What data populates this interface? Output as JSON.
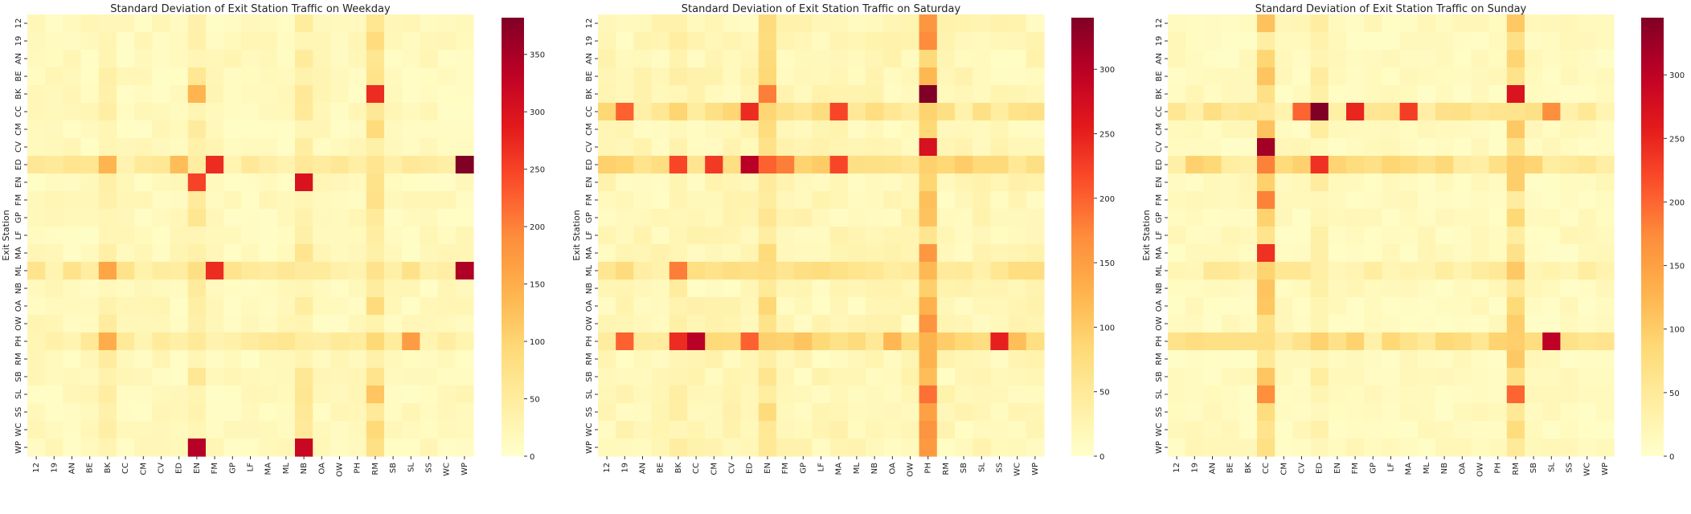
{
  "figure": {
    "y_label": "Exit Station"
  },
  "axis_ticks": {
    "y": [
      "12",
      "19",
      "AN",
      "BE",
      "BK",
      "CC",
      "CM",
      "CV",
      "ED",
      "EN",
      "FM",
      "GP",
      "LF",
      "MA",
      "ML",
      "NB",
      "OA",
      "OW",
      "PH",
      "RM",
      "SB",
      "SL",
      "SS",
      "WC",
      "WP"
    ],
    "x": [
      "12",
      "19",
      "AN",
      "BE",
      "BK",
      "CC",
      "CM",
      "CV",
      "ED",
      "EN",
      "FM",
      "GP",
      "LF",
      "MA",
      "ML",
      "NB",
      "OA",
      "OW",
      "PH",
      "RM",
      "SB",
      "SL",
      "SS",
      "WC",
      "WP"
    ]
  },
  "colormap": {
    "name": "YlOrRd",
    "stops": [
      "#ffffcc",
      "#ffeda0",
      "#fed976",
      "#feb24c",
      "#fd8d3c",
      "#fc4e2a",
      "#e31a1c",
      "#bd0026",
      "#800026"
    ]
  },
  "chart_data": [
    {
      "type": "heatmap",
      "title": "Standard Deviation of Exit Station Traffic on Weekday",
      "ylabel": "Exit Station",
      "vmin": 0,
      "vmax": 382,
      "colorbar_ticks": [
        0,
        50,
        100,
        150,
        200,
        250,
        300,
        350
      ],
      "base_level": 15,
      "hot_rows": {
        "ED": 45,
        "ML": 55,
        "PH": 45
      },
      "hot_cols": {
        "BK": 35,
        "EN": 45,
        "NB": 45,
        "RM": 65
      },
      "hot_cells": [
        {
          "row": "ED",
          "col": "WP",
          "value": 382
        },
        {
          "row": "ML",
          "col": "WP",
          "value": 345
        },
        {
          "row": "EN",
          "col": "NB",
          "value": 300
        },
        {
          "row": "WP",
          "col": "EN",
          "value": 340
        },
        {
          "row": "WP",
          "col": "NB",
          "value": 320
        },
        {
          "row": "ED",
          "col": "FM",
          "value": 270
        },
        {
          "row": "ML",
          "col": "FM",
          "value": 270
        },
        {
          "row": "EN",
          "col": "EN",
          "value": 250
        },
        {
          "row": "BK",
          "col": "RM",
          "value": 270
        },
        {
          "row": "PH",
          "col": "SL",
          "value": 170
        },
        {
          "row": "ML",
          "col": "BK",
          "value": 160
        },
        {
          "row": "PH",
          "col": "BK",
          "value": 150
        },
        {
          "row": "BK",
          "col": "EN",
          "value": 140
        },
        {
          "row": "ED",
          "col": "BK",
          "value": 140
        },
        {
          "row": "ED",
          "col": "ED",
          "value": 130
        },
        {
          "row": "SL",
          "col": "RM",
          "value": 120
        }
      ]
    },
    {
      "type": "heatmap",
      "title": "Standard Deviation of Exit Station Traffic on Saturday",
      "ylabel": "Exit Station",
      "vmin": 0,
      "vmax": 340,
      "colorbar_ticks": [
        0,
        50,
        100,
        150,
        200,
        250,
        300
      ],
      "base_level": 18,
      "hot_rows": {
        "CC": 60,
        "ED": 70,
        "ML": 55,
        "PH": 85
      },
      "hot_cols": {
        "BK": 30,
        "EN": 60,
        "PH": 110
      },
      "hot_cells": [
        {
          "row": "BK",
          "col": "PH",
          "value": 340
        },
        {
          "row": "ED",
          "col": "ED",
          "value": 300
        },
        {
          "row": "PH",
          "col": "CC",
          "value": 300
        },
        {
          "row": "CV",
          "col": "PH",
          "value": 270
        },
        {
          "row": "PH",
          "col": "SS",
          "value": 250
        },
        {
          "row": "PH",
          "col": "BK",
          "value": 240
        },
        {
          "row": "CC",
          "col": "ED",
          "value": 240
        },
        {
          "row": "ED",
          "col": "CM",
          "value": 230
        },
        {
          "row": "ED",
          "col": "MA",
          "value": 220
        },
        {
          "row": "ED",
          "col": "BK",
          "value": 220
        },
        {
          "row": "CC",
          "col": "MA",
          "value": 220
        },
        {
          "row": "CC",
          "col": "19",
          "value": 200
        },
        {
          "row": "PH",
          "col": "ED",
          "value": 200
        },
        {
          "row": "PH",
          "col": "19",
          "value": 200
        },
        {
          "row": "ED",
          "col": "EN",
          "value": 200
        },
        {
          "row": "BK",
          "col": "EN",
          "value": 180
        },
        {
          "row": "ED",
          "col": "FM",
          "value": 180
        },
        {
          "row": "ML",
          "col": "BK",
          "value": 180
        },
        {
          "row": "SL",
          "col": "PH",
          "value": 190
        },
        {
          "row": "12",
          "col": "PH",
          "value": 160
        },
        {
          "row": "19",
          "col": "PH",
          "value": 170
        }
      ]
    },
    {
      "type": "heatmap",
      "title": "Standard Deviation of Exit Station Traffic on Sunday",
      "ylabel": "Exit Station",
      "vmin": 0,
      "vmax": 345,
      "colorbar_ticks": [
        0,
        50,
        100,
        150,
        200,
        250,
        300
      ],
      "base_level": 12,
      "hot_rows": {
        "CC": 50,
        "ED": 65,
        "ML": 40,
        "PH": 65
      },
      "hot_cols": {
        "CC": 75,
        "ED": 30,
        "RM": 70
      },
      "hot_cells": [
        {
          "row": "CC",
          "col": "ED",
          "value": 345
        },
        {
          "row": "CV",
          "col": "CC",
          "value": 320
        },
        {
          "row": "PH",
          "col": "SL",
          "value": 300
        },
        {
          "row": "CC",
          "col": "FM",
          "value": 250
        },
        {
          "row": "BK",
          "col": "RM",
          "value": 270
        },
        {
          "row": "MA",
          "col": "CC",
          "value": 240
        },
        {
          "row": "ED",
          "col": "ED",
          "value": 240
        },
        {
          "row": "CC",
          "col": "MA",
          "value": 230
        },
        {
          "row": "CC",
          "col": "CV",
          "value": 200
        },
        {
          "row": "SL",
          "col": "RM",
          "value": 200
        },
        {
          "row": "FM",
          "col": "CC",
          "value": 180
        },
        {
          "row": "SL",
          "col": "CC",
          "value": 170
        },
        {
          "row": "CC",
          "col": "SL",
          "value": 170
        },
        {
          "row": "ED",
          "col": "CC",
          "value": 180
        }
      ]
    }
  ]
}
